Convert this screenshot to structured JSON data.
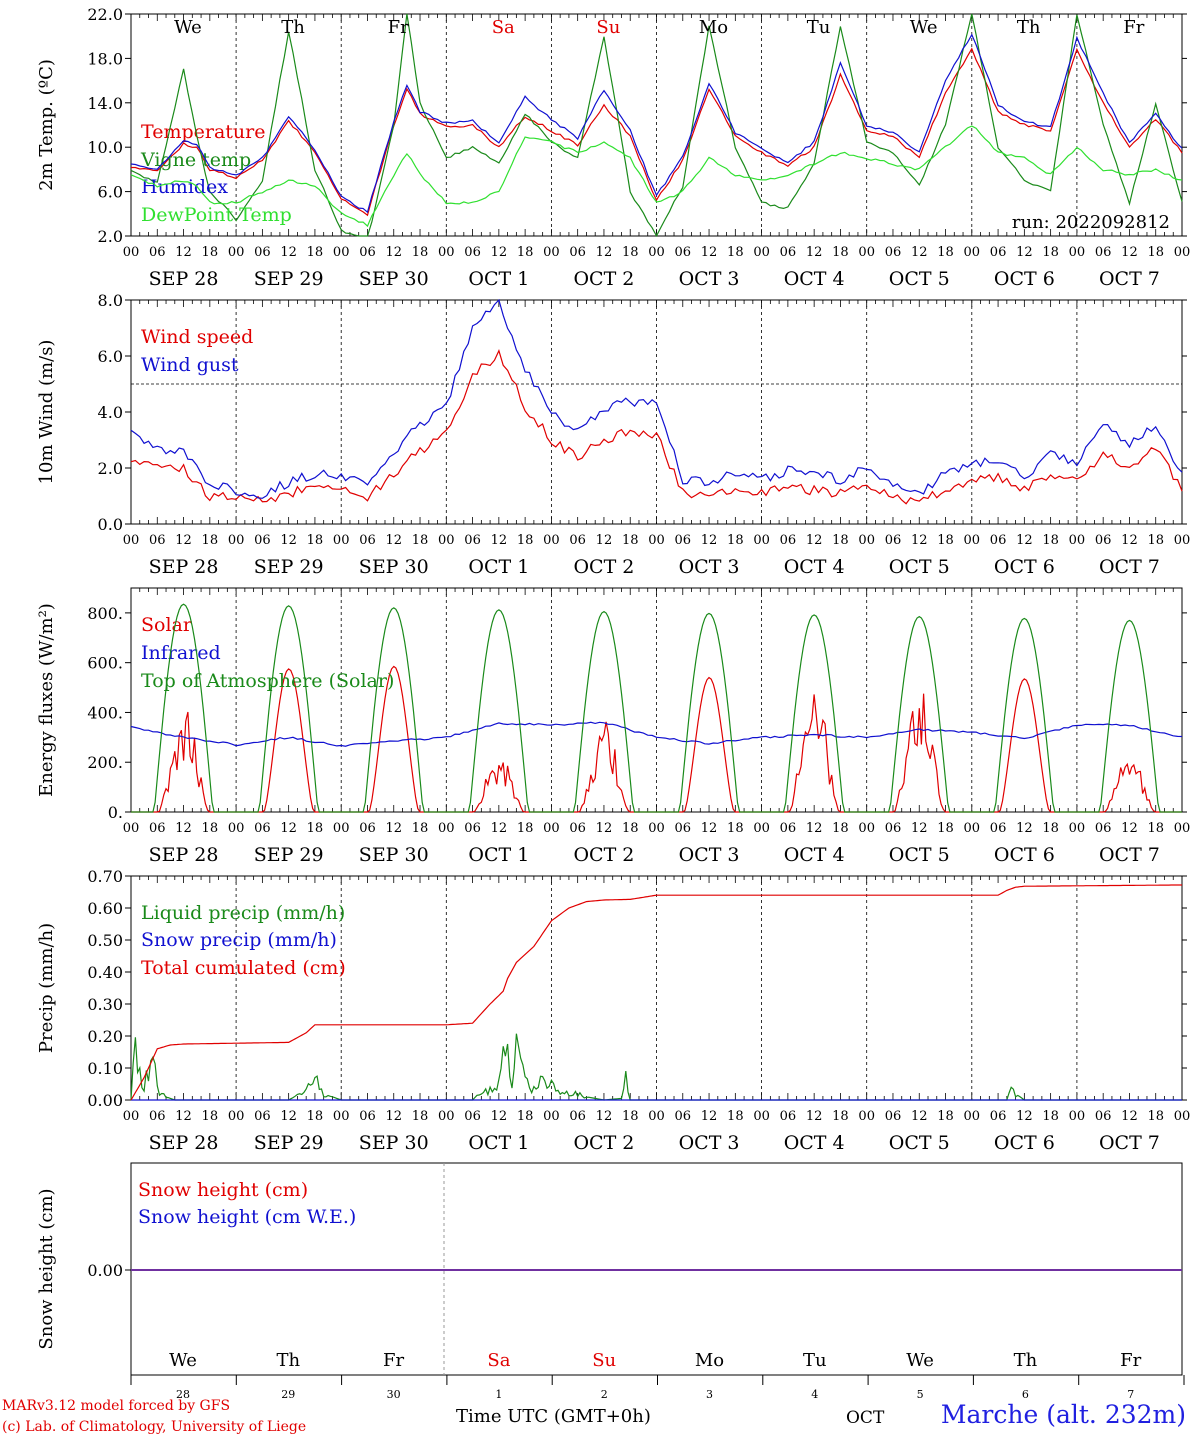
{
  "run_label": "run: 2022092812",
  "x_title": "Time UTC (GMT+0h)",
  "month_label": "OCT",
  "station": "Marche (alt. 232m)",
  "credits": [
    "MARv3.12 model forced by GFS",
    "(c) Lab. of Climatology, University of Liege"
  ],
  "colors": {
    "red": "#e00000",
    "blue": "#1010d0",
    "green": "#1a8a1a",
    "lightgreen": "#30e030",
    "purple": "#7030a0"
  },
  "time_axis": {
    "start": "2022-09-28T00:00Z",
    "end": "2022-10-08T00:00Z",
    "day_labels": [
      "SEP 28",
      "SEP 29",
      "SEP 30",
      "OCT  1",
      "OCT  2",
      "OCT  3",
      "OCT  4",
      "OCT  5",
      "OCT  6",
      "OCT  7"
    ],
    "hour_ticks": [
      "00",
      "06",
      "12",
      "18"
    ],
    "weekdays": [
      {
        "label": "We",
        "color": "#000000"
      },
      {
        "label": "Th",
        "color": "#000000"
      },
      {
        "label": "Fr",
        "color": "#000000"
      },
      {
        "label": "Sa",
        "color": "#e00000"
      },
      {
        "label": "Su",
        "color": "#e00000"
      },
      {
        "label": "Mo",
        "color": "#000000"
      },
      {
        "label": "Tu",
        "color": "#000000"
      },
      {
        "label": "We",
        "color": "#000000"
      },
      {
        "label": "Th",
        "color": "#000000"
      },
      {
        "label": "Fr",
        "color": "#000000"
      }
    ],
    "day_numbers": [
      "28",
      "29",
      "30",
      "1",
      "2",
      "3",
      "4",
      "5",
      "6",
      "7"
    ]
  },
  "chart_data": [
    {
      "type": "line",
      "ylabel": "2m Temp. (ºC)",
      "ylim": [
        2.0,
        22.0
      ],
      "yticks": [
        "2.0",
        "6.0",
        "10.0",
        "14.0",
        "18.0",
        "22.0"
      ],
      "x_unit": "hours since 2022-09-28 00 UTC",
      "series": [
        {
          "name": "Temperature",
          "color": "#e00000",
          "x": [
            0,
            6,
            12,
            15,
            18,
            24,
            30,
            36,
            42,
            48,
            54,
            60,
            63,
            66,
            72,
            78,
            84,
            90,
            96,
            102,
            108,
            114,
            120,
            126,
            132,
            138,
            144,
            150,
            156,
            162,
            168,
            174,
            180,
            186,
            192,
            198,
            204,
            210,
            216,
            222,
            228,
            234,
            240
          ],
          "values": [
            8.3,
            7.8,
            10.3,
            10.0,
            8.0,
            7.2,
            8.8,
            12.4,
            9.5,
            5.3,
            4.0,
            12.0,
            15.2,
            13.0,
            11.8,
            12.0,
            10.0,
            12.8,
            11.5,
            10.2,
            13.8,
            11.0,
            5.2,
            8.8,
            15.2,
            11.0,
            9.5,
            8.3,
            10.0,
            16.5,
            11.5,
            11.0,
            9.0,
            15.0,
            18.8,
            13.2,
            12.0,
            11.5,
            18.8,
            14.0,
            10.0,
            12.5,
            9.5
          ]
        },
        {
          "name": "Vigne temp",
          "color": "#1a8a1a",
          "x": [
            0,
            6,
            12,
            15,
            18,
            24,
            30,
            36,
            42,
            48,
            54,
            60,
            63,
            66,
            72,
            78,
            84,
            90,
            96,
            102,
            108,
            114,
            120,
            126,
            132,
            138,
            144,
            150,
            156,
            162,
            168,
            174,
            180,
            186,
            192,
            198,
            204,
            210,
            216,
            222,
            228,
            234,
            240
          ],
          "values": [
            7.8,
            6.8,
            17.0,
            11.0,
            6.0,
            3.5,
            7.0,
            20.5,
            8.0,
            2.5,
            1.5,
            12.0,
            22.0,
            14.0,
            9.0,
            10.0,
            8.5,
            13.0,
            10.5,
            9.0,
            20.0,
            6.0,
            2.0,
            6.5,
            21.0,
            10.0,
            5.0,
            4.5,
            8.5,
            21.0,
            10.5,
            9.5,
            6.5,
            12.0,
            22.0,
            10.0,
            7.0,
            6.0,
            22.0,
            12.0,
            5.0,
            14.0,
            5.0
          ]
        },
        {
          "name": "Humidex",
          "color": "#1010d0",
          "x": [
            0,
            6,
            12,
            15,
            18,
            24,
            30,
            36,
            42,
            48,
            54,
            60,
            63,
            66,
            72,
            78,
            84,
            90,
            96,
            102,
            108,
            114,
            120,
            126,
            132,
            138,
            144,
            150,
            156,
            162,
            168,
            174,
            180,
            186,
            192,
            198,
            204,
            210,
            216,
            222,
            228,
            234,
            240
          ],
          "values": [
            8.6,
            8.0,
            10.6,
            10.3,
            8.2,
            7.4,
            9.0,
            12.8,
            9.8,
            5.5,
            4.2,
            12.3,
            15.5,
            13.2,
            12.2,
            12.4,
            10.4,
            14.5,
            12.5,
            10.8,
            15.2,
            11.5,
            5.6,
            9.2,
            15.8,
            11.3,
            9.8,
            8.6,
            10.5,
            17.5,
            12.0,
            11.3,
            9.5,
            16.0,
            20.2,
            13.8,
            12.3,
            11.8,
            19.8,
            14.8,
            10.4,
            13.0,
            9.8
          ]
        },
        {
          "name": "DewPoint Temp",
          "color": "#30e030",
          "x": [
            0,
            6,
            12,
            15,
            18,
            24,
            30,
            36,
            42,
            48,
            54,
            60,
            63,
            66,
            72,
            78,
            84,
            90,
            96,
            102,
            108,
            114,
            120,
            126,
            132,
            138,
            144,
            150,
            156,
            162,
            168,
            174,
            180,
            186,
            192,
            198,
            204,
            210,
            216,
            222,
            228,
            234,
            240
          ],
          "values": [
            7.5,
            6.5,
            7.0,
            6.5,
            5.0,
            5.0,
            6.0,
            7.0,
            6.5,
            4.0,
            3.0,
            7.5,
            9.5,
            7.5,
            5.0,
            5.0,
            6.0,
            11.0,
            10.5,
            9.5,
            10.5,
            9.0,
            5.0,
            6.0,
            9.0,
            7.5,
            7.0,
            7.5,
            8.5,
            9.5,
            9.0,
            8.5,
            8.0,
            10.0,
            12.0,
            9.5,
            9.0,
            7.5,
            10.0,
            8.0,
            7.5,
            8.0,
            7.0
          ]
        }
      ]
    },
    {
      "type": "line",
      "ylabel": "10m Wind (m/s)",
      "ylim": [
        0.0,
        8.0
      ],
      "yticks": [
        "0.0",
        "2.0",
        "4.0",
        "6.0",
        "8.0"
      ],
      "reference_line": 5.0,
      "x_unit": "hours since 2022-09-28 00 UTC",
      "series": [
        {
          "name": "Wind speed",
          "color": "#e00000",
          "x": [
            0,
            6,
            12,
            18,
            24,
            30,
            36,
            42,
            48,
            54,
            60,
            66,
            72,
            78,
            84,
            90,
            96,
            102,
            108,
            114,
            120,
            126,
            132,
            138,
            144,
            150,
            156,
            162,
            168,
            174,
            180,
            186,
            192,
            198,
            204,
            210,
            216,
            222,
            228,
            234,
            240
          ],
          "values": [
            2.4,
            2.0,
            2.0,
            1.0,
            0.9,
            0.8,
            1.1,
            1.3,
            1.2,
            1.0,
            1.8,
            2.6,
            3.2,
            5.3,
            6.1,
            4.2,
            3.0,
            2.4,
            3.0,
            3.3,
            3.2,
            1.1,
            1.0,
            1.2,
            1.1,
            1.3,
            1.2,
            1.1,
            1.4,
            1.0,
            0.7,
            1.3,
            1.5,
            1.7,
            1.2,
            1.8,
            1.6,
            2.5,
            2.0,
            2.7,
            1.2
          ]
        },
        {
          "name": "Wind gust",
          "color": "#1010d0",
          "x": [
            0,
            6,
            12,
            18,
            24,
            30,
            36,
            42,
            48,
            54,
            60,
            66,
            72,
            78,
            84,
            90,
            96,
            102,
            108,
            114,
            120,
            126,
            132,
            138,
            144,
            150,
            156,
            162,
            168,
            174,
            180,
            186,
            192,
            198,
            204,
            210,
            216,
            222,
            228,
            234,
            240
          ],
          "values": [
            3.2,
            2.7,
            2.6,
            1.4,
            1.2,
            1.0,
            1.5,
            1.8,
            1.7,
            1.4,
            2.5,
            3.6,
            4.2,
            7.0,
            7.9,
            5.5,
            4.0,
            3.3,
            4.1,
            4.4,
            4.3,
            1.6,
            1.5,
            1.8,
            1.6,
            1.9,
            1.8,
            1.6,
            2.0,
            1.4,
            1.0,
            1.8,
            2.1,
            2.3,
            1.6,
            2.5,
            2.2,
            3.5,
            2.9,
            3.6,
            1.7
          ]
        }
      ]
    },
    {
      "type": "line",
      "ylabel": "Energy fluxes (W/m²)",
      "ylim": [
        0,
        900
      ],
      "yticks": [
        "0.",
        "200.",
        "400.",
        "600.",
        "800."
      ],
      "x_unit": "hours since 2022-09-28 00 UTC",
      "series": [
        {
          "name": "Solar",
          "color": "#e00000",
          "daily_peak_values": [
            430,
            575,
            585,
            240,
            380,
            540,
            530,
            530,
            535,
            240
          ]
        },
        {
          "name": "Infrared",
          "color": "#1010d0",
          "x": [
            0,
            12,
            24,
            36,
            48,
            60,
            72,
            84,
            96,
            108,
            120,
            132,
            144,
            156,
            168,
            180,
            192,
            204,
            216,
            228,
            240
          ],
          "values": [
            340,
            300,
            270,
            300,
            265,
            285,
            300,
            355,
            350,
            360,
            300,
            275,
            300,
            310,
            300,
            330,
            320,
            295,
            350,
            350,
            300
          ]
        },
        {
          "name": "Top of Atmosphere (Solar)",
          "color": "#1a8a1a",
          "daily_peak_values": [
            835,
            828,
            820,
            812,
            805,
            798,
            792,
            785,
            778,
            770
          ]
        }
      ]
    },
    {
      "type": "line",
      "ylabel": "Precip (mm/h)",
      "ylim": [
        0.0,
        0.7
      ],
      "yticks": [
        "0.00",
        "0.10",
        "0.20",
        "0.30",
        "0.40",
        "0.50",
        "0.60",
        "0.70"
      ],
      "x_unit": "hours since 2022-09-28 00 UTC",
      "series": [
        {
          "name": "Liquid precip (mm/h)",
          "color": "#1a8a1a",
          "x": [
            0,
            1,
            2,
            3,
            5,
            6,
            8,
            10,
            12,
            36,
            40,
            42,
            44,
            48,
            78,
            80,
            84,
            86,
            87,
            88,
            90,
            92,
            94,
            96,
            100,
            104,
            108,
            112,
            113,
            114,
            120,
            200,
            201,
            202,
            204,
            240
          ],
          "values": [
            0,
            0.2,
            0.12,
            0.05,
            0.15,
            0.04,
            0.01,
            0,
            0,
            0,
            0.03,
            0.07,
            0.02,
            0,
            0,
            0.03,
            0.05,
            0.27,
            0.05,
            0.2,
            0.06,
            0.05,
            0.06,
            0.05,
            0.03,
            0.01,
            0,
            0.005,
            0.08,
            0,
            0,
            0,
            0.06,
            0.02,
            0,
            0
          ]
        },
        {
          "name": "Snow precip (mm/h)",
          "color": "#1010d0",
          "x": [
            0,
            240
          ],
          "values": [
            0,
            0
          ]
        },
        {
          "name": "Total cumulated (cm)",
          "color": "#e00000",
          "x": [
            0,
            3,
            5,
            6,
            9,
            12,
            36,
            40,
            42,
            72,
            78,
            82,
            85,
            86,
            88,
            92,
            94,
            96,
            100,
            104,
            108,
            114,
            120,
            198,
            200,
            202,
            204,
            240
          ],
          "values": [
            0,
            0.07,
            0.13,
            0.16,
            0.172,
            0.175,
            0.18,
            0.21,
            0.235,
            0.235,
            0.24,
            0.3,
            0.34,
            0.38,
            0.43,
            0.48,
            0.52,
            0.56,
            0.6,
            0.62,
            0.625,
            0.627,
            0.64,
            0.64,
            0.655,
            0.665,
            0.668,
            0.672
          ]
        }
      ]
    },
    {
      "type": "line",
      "ylabel": "Snow height (cm)",
      "yticks": [
        "0.00"
      ],
      "x_unit": "hours since 2022-09-28 00 UTC",
      "series": [
        {
          "name": "Snow height (cm)",
          "color": "#e00000",
          "x": [
            0,
            240
          ],
          "values": [
            0,
            0
          ]
        },
        {
          "name": "Snow height (cm W.E.)",
          "color": "#1010d0",
          "x": [
            0,
            240
          ],
          "values": [
            0,
            0
          ]
        }
      ]
    }
  ]
}
